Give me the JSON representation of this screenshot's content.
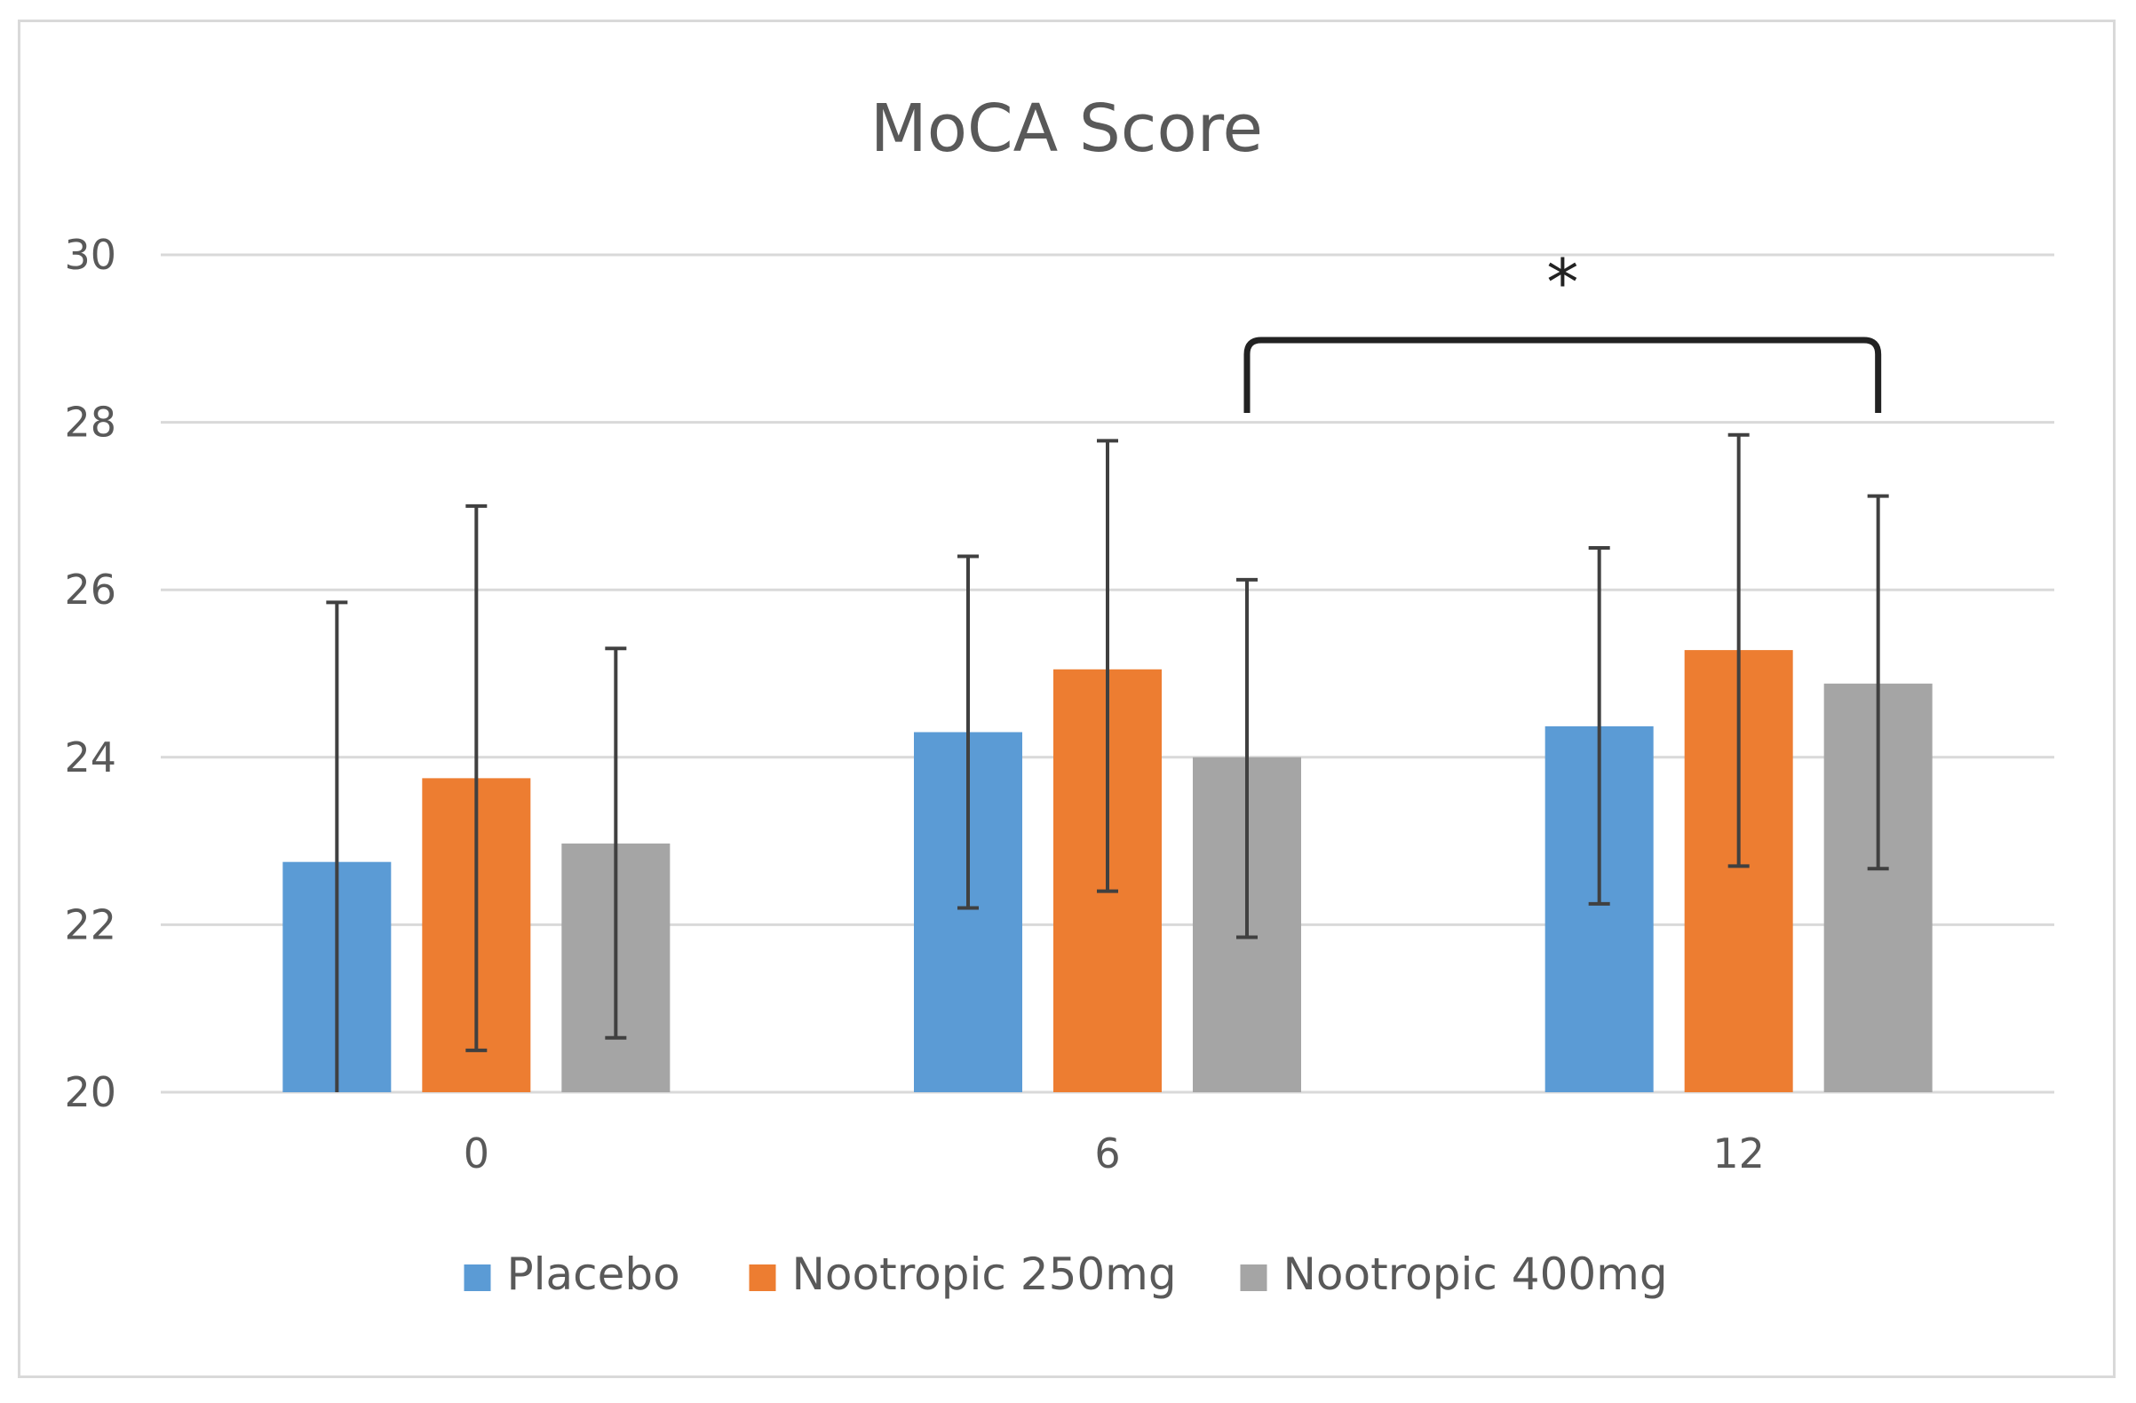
{
  "chart_data": {
    "type": "bar",
    "title": "MoCA Score",
    "xlabel": "",
    "ylabel": "",
    "categories": [
      "0",
      "6",
      "12"
    ],
    "ylim": [
      20,
      30
    ],
    "yticks": [
      20,
      22,
      24,
      26,
      28,
      30
    ],
    "grid": true,
    "legend_position": "bottom",
    "series": [
      {
        "name": "Placebo",
        "color": "#5b9bd5",
        "values": [
          22.75,
          24.3,
          24.37
        ],
        "error_low": [
          19.65,
          22.2,
          22.25
        ],
        "error_high": [
          25.85,
          26.4,
          26.5
        ]
      },
      {
        "name": "Nootropic 250mg",
        "color": "#ed7d31",
        "values": [
          23.75,
          25.05,
          25.28
        ],
        "error_low": [
          20.5,
          22.4,
          22.7
        ],
        "error_high": [
          27.0,
          27.78,
          27.85
        ]
      },
      {
        "name": "Nootropic 400mg",
        "color": "#a5a5a5",
        "values": [
          22.97,
          24.0,
          24.88
        ],
        "error_low": [
          20.65,
          21.85,
          22.67
        ],
        "error_high": [
          25.3,
          26.12,
          27.12
        ]
      }
    ],
    "annotations": [
      {
        "type": "significance-bracket",
        "text": "*",
        "from_category": "6",
        "to_category": "12"
      }
    ]
  }
}
